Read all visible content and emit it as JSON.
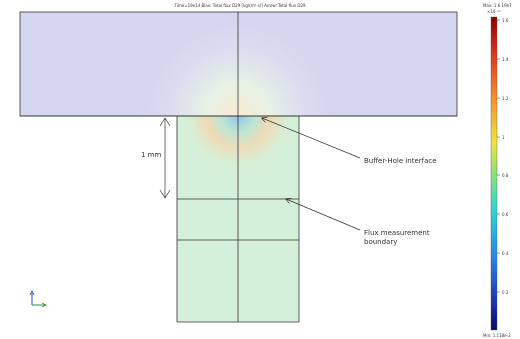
{
  "plot": {
    "title": "Time=19e14   Blax: Total flux D29 [kg/(m²·s)]   Arrow: Total flux D29"
  },
  "colorbar": {
    "max_label": "Max: 1.6 19e7",
    "exponent": "×10⁻¹²",
    "min_label": "Min: 1.118e-2",
    "ticks": [
      "1.6",
      "1.4",
      "1.2",
      "1",
      "0.8",
      "0.6",
      "0.4",
      "0.2"
    ],
    "colors": [
      "#8b0000",
      "#d62a1b",
      "#f58a2c",
      "#f2e23c",
      "#8fe07a",
      "#2ad6d6",
      "#2a7fe0",
      "#1a2fa8",
      "#080a6a"
    ]
  },
  "annotations": {
    "interface": "Buffer-Hole interface",
    "boundary_line1": "Flux measurement",
    "boundary_line2": "boundary",
    "dimension": "1 mm"
  },
  "colors": {
    "buffer": "#d5d6ef",
    "hole": "#d4f0da",
    "outline": "#333333"
  }
}
